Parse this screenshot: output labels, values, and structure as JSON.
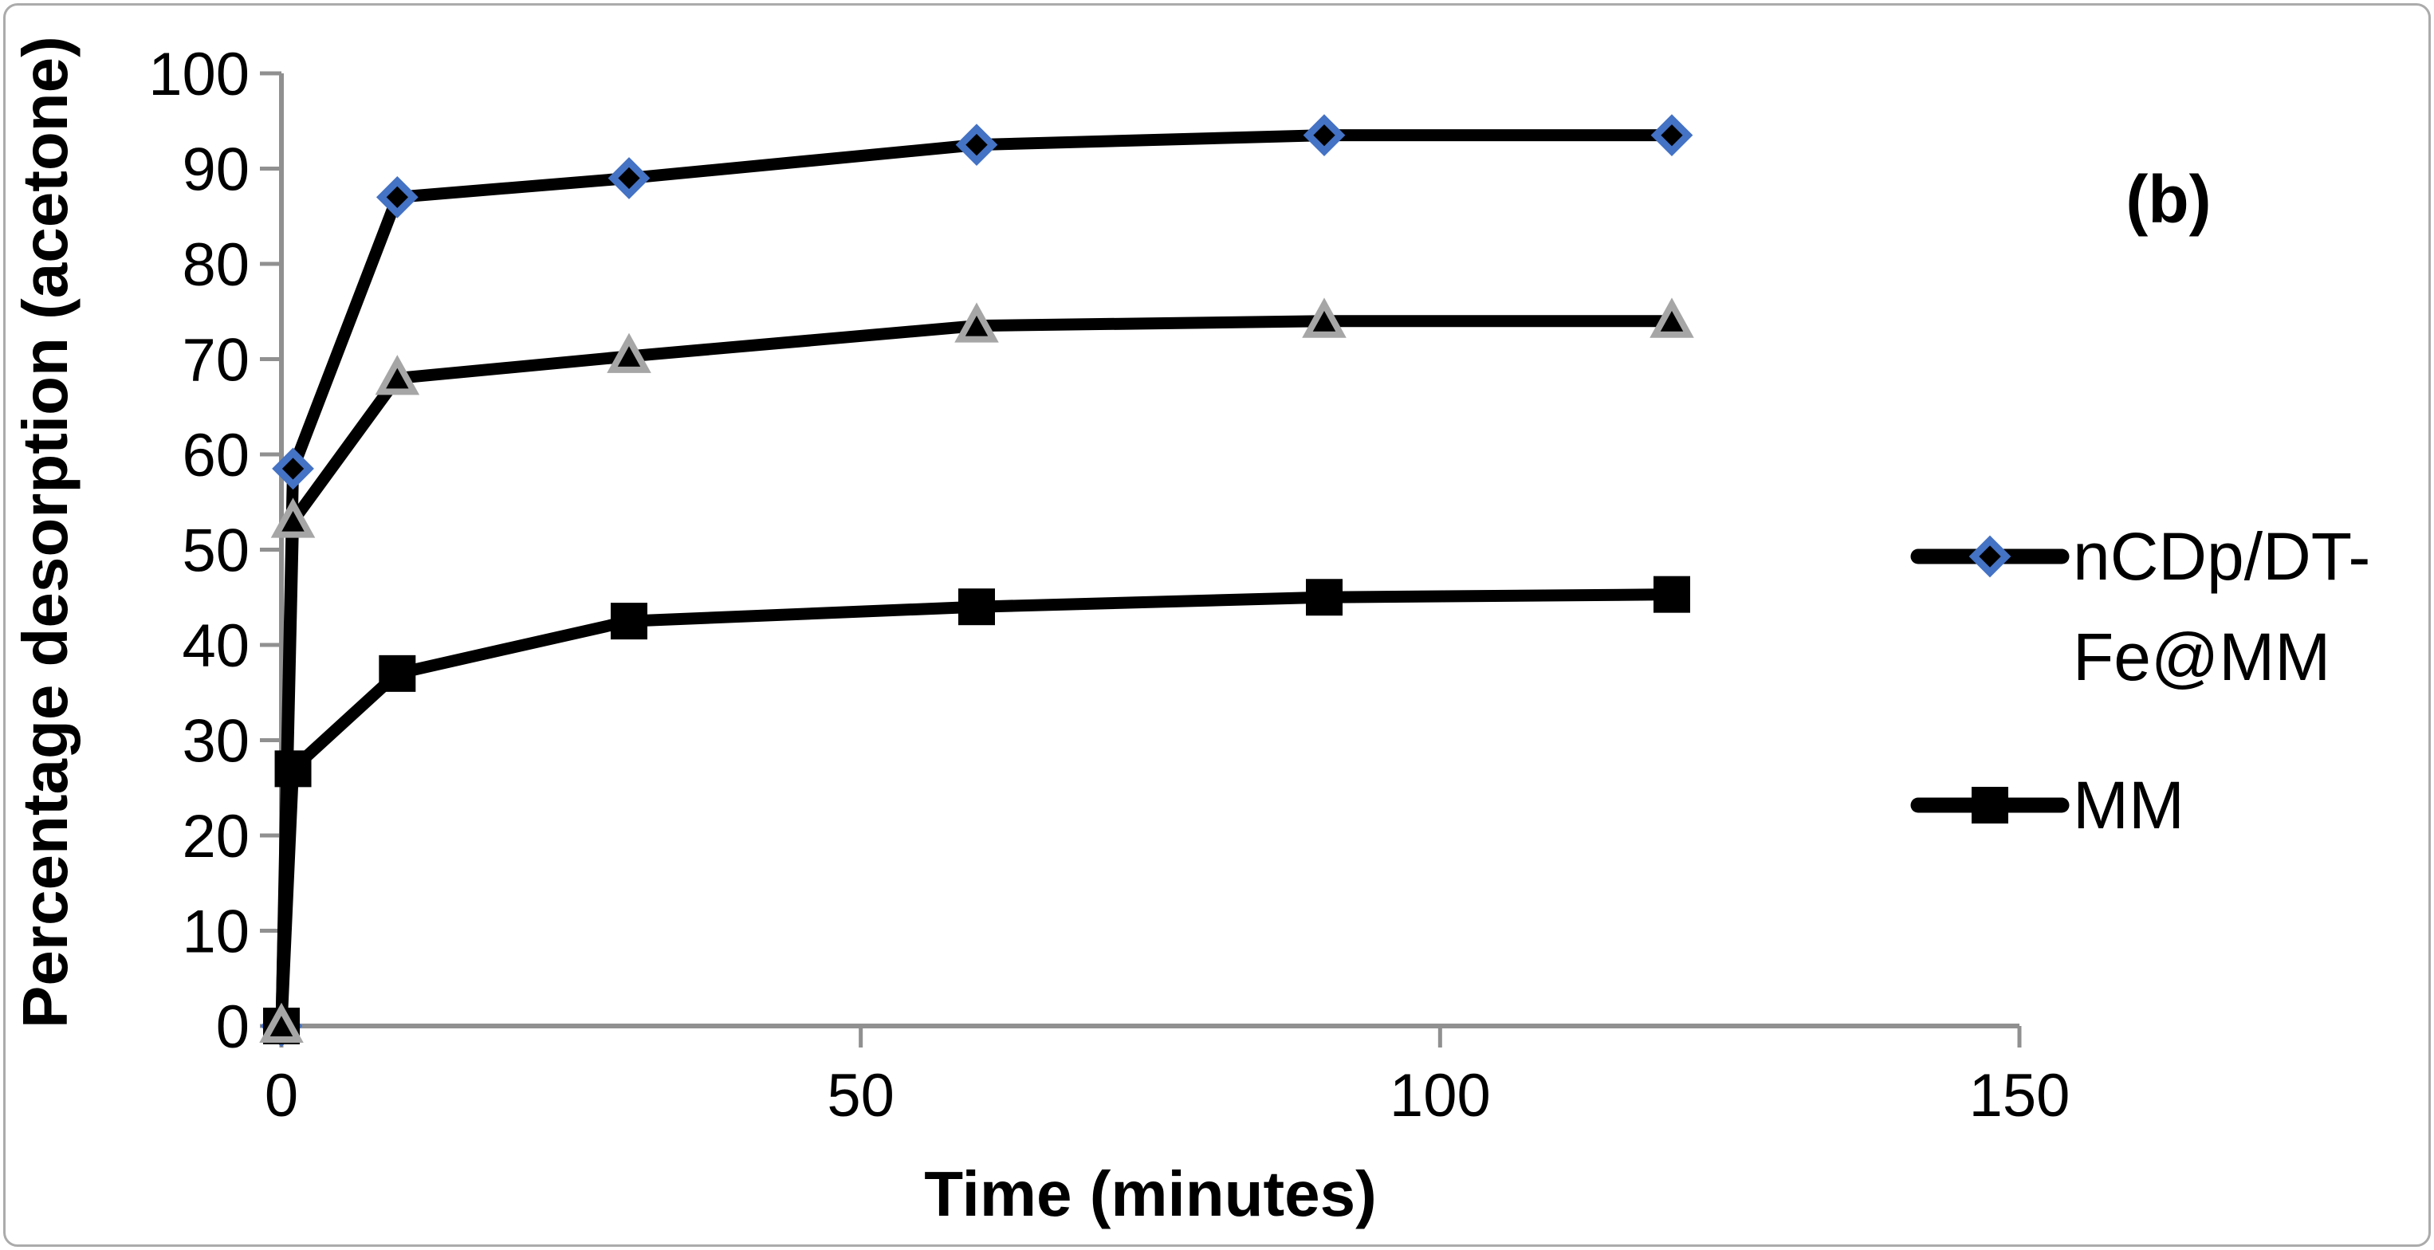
{
  "figure": {
    "panel_label": "(b)",
    "background": "#ffffff",
    "border_color": "#ababab"
  },
  "chart_data": {
    "type": "line",
    "title": "",
    "xlabel": "Time (minutes)",
    "ylabel": "Percentage desorption (acetone)",
    "xlim": [
      0,
      150
    ],
    "ylim": [
      0,
      100
    ],
    "x_ticks": [
      0,
      50,
      100,
      150
    ],
    "y_ticks": [
      0,
      10,
      20,
      30,
      40,
      50,
      60,
      70,
      80,
      90,
      100
    ],
    "grid": "off",
    "axis_color": "#909090",
    "x": [
      0,
      1,
      10,
      30,
      60,
      90,
      120
    ],
    "series": [
      {
        "name": "nCDp/DT-Fe@MM",
        "marker": "diamond",
        "marker_fill": "#000000",
        "marker_stroke": "#4472c4",
        "line_color": "#000000",
        "values": [
          0,
          58.5,
          87,
          89,
          92.5,
          93.5,
          93.5
        ]
      },
      {
        "name": "MM",
        "marker": "square",
        "marker_fill": "#000000",
        "marker_stroke": "none",
        "line_color": "#000000",
        "values": [
          0,
          27,
          37,
          42.5,
          44,
          45,
          45.3
        ]
      },
      {
        "name": "",
        "marker": "triangle",
        "marker_fill": "#000000",
        "marker_stroke": "#a6a6a6",
        "line_color": "#000000",
        "values": [
          0,
          53,
          68,
          70.3,
          73.5,
          74,
          74
        ]
      }
    ],
    "legend_position": "right",
    "legend": [
      {
        "series_index": 0,
        "label_lines": [
          "nCDp/DT-",
          "Fe@MM"
        ]
      },
      {
        "series_index": 1,
        "label_lines": [
          "MM"
        ]
      }
    ]
  }
}
